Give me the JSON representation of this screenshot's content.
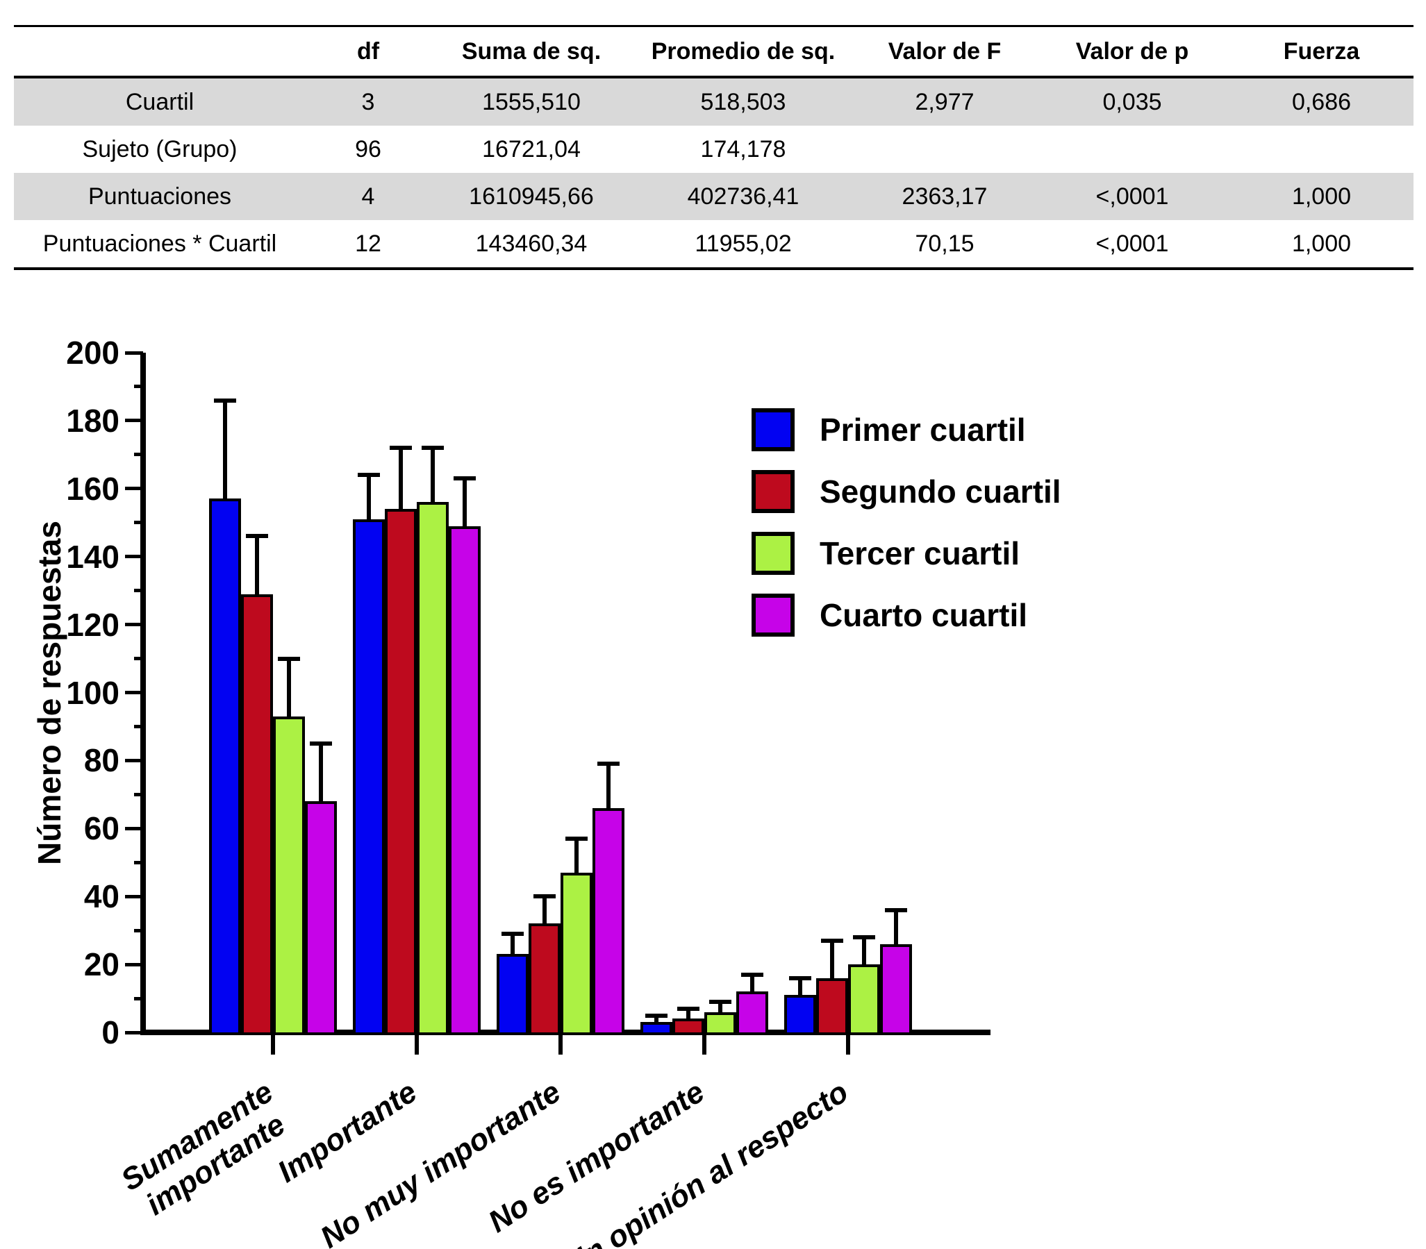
{
  "table": {
    "headers": [
      "",
      "df",
      "Suma de sq.",
      "Promedio de sq.",
      "Valor de F",
      "Valor de p",
      "Fuerza"
    ],
    "rows": [
      {
        "label": "Cuartil",
        "values": [
          "3",
          "1555,510",
          "518,503",
          "2,977",
          "0,035",
          "0,686"
        ],
        "shaded": true
      },
      {
        "label": "Sujeto (Grupo)",
        "values": [
          "96",
          "16721,04",
          "174,178",
          "",
          "",
          ""
        ],
        "shaded": false
      },
      {
        "label": "Puntuaciones",
        "values": [
          "4",
          "1610945,66",
          "402736,41",
          "2363,17",
          "<,0001",
          "1,000"
        ],
        "shaded": true
      },
      {
        "label": "Puntuaciones * Cuartil",
        "values": [
          "12",
          "143460,34",
          "11955,02",
          "70,15",
          "<,0001",
          "1,000"
        ],
        "shaded": false
      }
    ]
  },
  "chart_data": {
    "type": "bar",
    "categories": [
      "Sumamente\nimportante",
      "Importante",
      "No muy importante",
      "No es importante",
      "Sin opinión al respecto"
    ],
    "series": [
      {
        "name": "Primer cuartil",
        "color": "#0202f2",
        "values": [
          157,
          151,
          23,
          3,
          11
        ],
        "error_tops": [
          186,
          164,
          29,
          5,
          16
        ]
      },
      {
        "name": "Segundo cuartil",
        "color": "#be0a1e",
        "values": [
          129,
          154,
          32,
          4,
          16
        ],
        "error_tops": [
          146,
          172,
          40,
          7,
          27
        ]
      },
      {
        "name": "Tercer cuartil",
        "color": "#acf144",
        "values": [
          93,
          156,
          47,
          6,
          20
        ],
        "error_tops": [
          110,
          172,
          57,
          9,
          28
        ]
      },
      {
        "name": "Cuarto cuartil",
        "color": "#c603e8",
        "values": [
          68,
          149,
          66,
          12,
          26
        ],
        "error_tops": [
          85,
          163,
          79,
          17,
          36
        ]
      }
    ],
    "ylabel": "Número de respuestas",
    "xlabel": "",
    "ylim": [
      0,
      200
    ],
    "ytick_step": 20,
    "yminor_step": 10,
    "grid": false,
    "legend_position": "upper right",
    "error_bars": "upper only",
    "colors": {
      "axis": "#000000",
      "table_shaded_row": "#d9d9d9",
      "background": "#ffffff"
    }
  }
}
